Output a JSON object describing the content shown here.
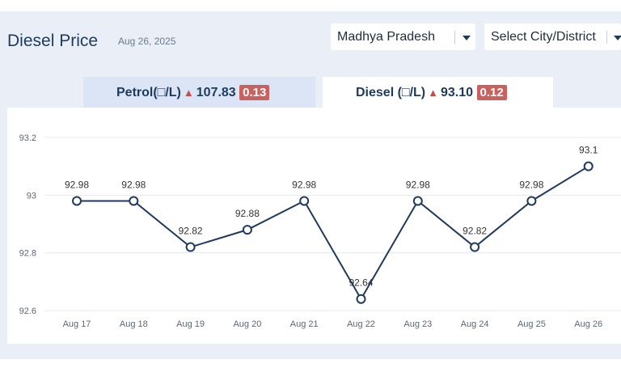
{
  "header": {
    "title": "Diesel Price",
    "date": "Aug 26, 2025"
  },
  "filters": {
    "state": "Madhya Pradesh",
    "city": "Select City/District"
  },
  "tabs": {
    "petrol": {
      "label": "Petrol(□/L)",
      "arrow": "▲",
      "price": "107.83",
      "change": "0.13"
    },
    "diesel": {
      "label": "Diesel (□/L)",
      "arrow": "▲",
      "price": "93.10",
      "change": "0.12"
    }
  },
  "chart_data": {
    "type": "line",
    "categories": [
      "Aug 17",
      "Aug 18",
      "Aug 19",
      "Aug 20",
      "Aug 21",
      "Aug 22",
      "Aug 23",
      "Aug 24",
      "Aug 25",
      "Aug 26"
    ],
    "values": [
      92.98,
      92.98,
      92.82,
      92.88,
      92.98,
      92.64,
      92.98,
      92.82,
      92.98,
      93.1
    ],
    "data_labels": [
      "92.98",
      "92.98",
      "92.82",
      "92.88",
      "92.98",
      "92.64",
      "92.98",
      "92.82",
      "92.98",
      "93.1"
    ],
    "yticks": [
      92.6,
      92.8,
      93,
      93.2
    ],
    "ytick_labels": [
      "92.6",
      "92.8",
      "93",
      "93.2"
    ],
    "ylim": [
      92.6,
      93.2
    ],
    "grid": true,
    "colors": {
      "line": "#1f3a5f",
      "marker_fill": "#ffffff",
      "grid": "#e4e9f0"
    }
  }
}
